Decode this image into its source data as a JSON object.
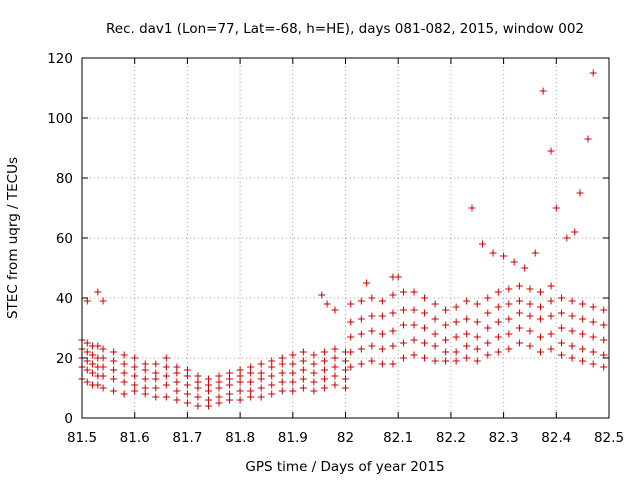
{
  "chart_data": {
    "type": "scatter",
    "title": "Rec. dav1 (Lon=77, Lat=-68, h=HE), days 081-082, 2015, window 002",
    "xlabel": "GPS time / Days of year 2015",
    "ylabel": "STEC from uqrg / TECUs",
    "xlim": [
      81.5,
      82.5
    ],
    "ylim": [
      0,
      120
    ],
    "xticks": [
      "81.5",
      "81.6",
      "81.7",
      "81.8",
      "81.9",
      "82",
      "82.1",
      "82.2",
      "82.3",
      "82.4",
      "82.5"
    ],
    "yticks": [
      "0",
      "20",
      "40",
      "60",
      "80",
      "100",
      "120"
    ],
    "grid": true,
    "marker": "plus",
    "color": "#cc0000",
    "series": [
      {
        "x": [
          81.5,
          81.51,
          81.52,
          81.53,
          81.54,
          81.56,
          81.58,
          81.6,
          81.62,
          81.64,
          81.66,
          81.68,
          81.7,
          81.72,
          81.74,
          81.76,
          81.78,
          81.8,
          81.82,
          81.84,
          81.86,
          81.88,
          81.9,
          81.92,
          81.94,
          81.96,
          81.98,
          82.0,
          81.5,
          81.51,
          81.52,
          81.53,
          81.54,
          81.56,
          81.58,
          81.6,
          81.62,
          81.64,
          81.66,
          81.68,
          81.7,
          81.72,
          81.74,
          81.76,
          81.78,
          81.8,
          81.82,
          81.84,
          81.86,
          81.88,
          81.9,
          81.92,
          81.94,
          81.96,
          81.98,
          82.0,
          81.5,
          81.51,
          81.52,
          81.53,
          81.54,
          81.56,
          81.58,
          81.6,
          81.62,
          81.64,
          81.66,
          81.68,
          81.7,
          81.72,
          81.74,
          81.76,
          81.78,
          81.8,
          81.82,
          81.84,
          81.86,
          81.88,
          81.9,
          81.92,
          81.94,
          81.96,
          81.98,
          82.0,
          81.5,
          81.51,
          81.52,
          81.53,
          81.54,
          81.56,
          81.58,
          81.6,
          81.62,
          81.64,
          81.66,
          81.68,
          81.7,
          81.72,
          81.74,
          81.76,
          81.78,
          81.8,
          81.82,
          81.84,
          81.86,
          81.88,
          81.9,
          81.92,
          81.94,
          81.96,
          81.98,
          82.0,
          81.5,
          81.51,
          81.52,
          81.53,
          81.54,
          81.56,
          81.58,
          81.6,
          81.62,
          81.64,
          81.66,
          81.68,
          81.7,
          81.72,
          81.74,
          81.76,
          81.78,
          81.8,
          81.82,
          81.84,
          81.86,
          81.88,
          81.9,
          81.92,
          81.94,
          81.96,
          81.98,
          82.0,
          82.01,
          82.03,
          82.05,
          82.07,
          82.09,
          82.11,
          82.13,
          82.15,
          82.17,
          82.19,
          82.21,
          82.23,
          82.25,
          82.27,
          82.29,
          82.31,
          82.33,
          82.35,
          82.37,
          82.39,
          82.41,
          82.43,
          82.45,
          82.47,
          82.49,
          82.01,
          82.03,
          82.05,
          82.07,
          82.09,
          82.11,
          82.13,
          82.15,
          82.17,
          82.19,
          82.21,
          82.23,
          82.25,
          82.27,
          82.29,
          82.31,
          82.33,
          82.35,
          82.37,
          82.39,
          82.41,
          82.43,
          82.45,
          82.47,
          82.49,
          82.01,
          82.03,
          82.05,
          82.07,
          82.09,
          82.11,
          82.13,
          82.15,
          82.17,
          82.19,
          82.21,
          82.23,
          82.25,
          82.27,
          82.29,
          82.31,
          82.33,
          82.35,
          82.37,
          82.39,
          82.41,
          82.43,
          82.45,
          82.47,
          82.49,
          82.01,
          82.03,
          82.05,
          82.07,
          82.09,
          82.11,
          82.13,
          82.15,
          82.17,
          82.19,
          82.21,
          82.23,
          82.25,
          82.27,
          82.29,
          82.31,
          82.33,
          82.35,
          82.37,
          82.39,
          82.41,
          82.43,
          82.45,
          82.47,
          82.49,
          82.01,
          82.03,
          82.05,
          82.07,
          82.09,
          82.11,
          82.13,
          82.15,
          82.17,
          82.19,
          82.21,
          82.23,
          82.25,
          82.27,
          82.29,
          82.31,
          82.33,
          82.35,
          82.37,
          82.39,
          82.41,
          82.43,
          82.45,
          82.47,
          82.49,
          81.51,
          81.53,
          81.54,
          81.955,
          81.965,
          81.98,
          82.04,
          82.09,
          82.1,
          82.24,
          82.26,
          82.28,
          82.3,
          82.32,
          82.34,
          82.36,
          82.375,
          82.39,
          82.4,
          82.42,
          82.435,
          82.445,
          82.46,
          82.47
        ],
        "y": [
          13,
          12,
          11,
          11,
          10,
          9,
          8,
          9,
          8,
          7,
          7,
          6,
          5,
          4,
          4,
          5,
          6,
          6,
          7,
          7,
          8,
          9,
          9,
          10,
          9,
          10,
          11,
          10,
          17,
          16,
          15,
          14,
          14,
          13,
          12,
          11,
          10,
          10,
          11,
          9,
          8,
          7,
          6,
          7,
          8,
          9,
          9,
          10,
          11,
          12,
          12,
          13,
          12,
          13,
          14,
          13,
          20,
          19,
          18,
          17,
          17,
          16,
          15,
          14,
          13,
          13,
          14,
          12,
          11,
          10,
          9,
          10,
          11,
          12,
          12,
          13,
          14,
          15,
          15,
          16,
          15,
          16,
          17,
          16,
          23,
          22,
          21,
          20,
          20,
          19,
          18,
          17,
          16,
          15,
          17,
          15,
          14,
          12,
          11,
          12,
          13,
          14,
          15,
          15,
          17,
          18,
          18,
          19,
          18,
          19,
          20,
          19,
          26,
          25,
          24,
          24,
          23,
          22,
          21,
          20,
          18,
          18,
          20,
          17,
          16,
          14,
          13,
          14,
          15,
          16,
          17,
          18,
          19,
          20,
          21,
          22,
          21,
          22,
          23,
          22,
          17,
          18,
          19,
          18,
          18,
          20,
          21,
          20,
          19,
          19,
          19,
          20,
          19,
          21,
          22,
          23,
          25,
          24,
          22,
          23,
          21,
          20,
          19,
          18,
          17,
          22,
          23,
          24,
          23,
          24,
          25,
          26,
          25,
          24,
          22,
          22,
          24,
          23,
          25,
          27,
          28,
          30,
          29,
          27,
          28,
          25,
          24,
          23,
          22,
          21,
          27,
          28,
          29,
          28,
          29,
          31,
          31,
          30,
          28,
          26,
          27,
          28,
          27,
          30,
          32,
          33,
          35,
          34,
          33,
          34,
          30,
          29,
          28,
          27,
          26,
          32,
          33,
          34,
          34,
          35,
          36,
          36,
          35,
          33,
          31,
          32,
          33,
          32,
          35,
          37,
          38,
          39,
          38,
          37,
          39,
          35,
          34,
          33,
          32,
          31,
          38,
          39,
          40,
          39,
          41,
          42,
          42,
          40,
          38,
          36,
          37,
          39,
          38,
          40,
          42,
          43,
          44,
          43,
          42,
          44,
          40,
          39,
          38,
          37,
          36,
          39,
          42,
          39,
          41,
          38,
          36,
          45,
          47,
          47,
          70,
          58,
          55,
          54,
          52,
          50,
          55,
          109,
          89,
          70,
          60,
          62,
          75,
          93,
          115
        ]
      }
    ]
  }
}
